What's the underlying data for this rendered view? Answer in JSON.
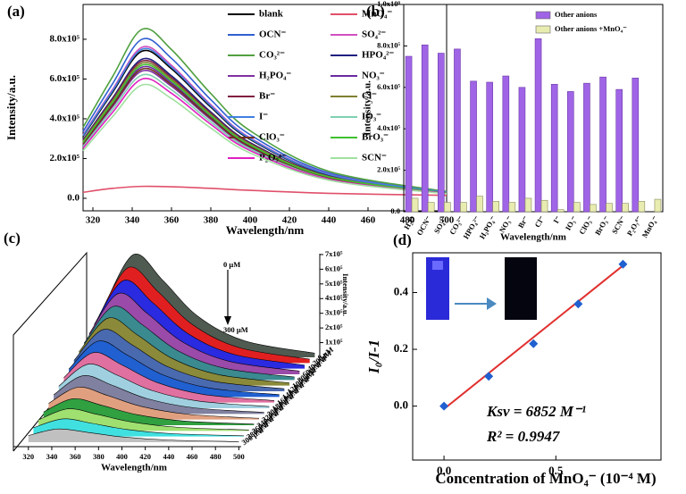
{
  "chart_data": [
    {
      "type": "line",
      "panel_label": "(a)",
      "x_label": "Wavelength/nm",
      "y_label": "Intensity/a.u.",
      "x": [
        315,
        330,
        345,
        360,
        380,
        400,
        440,
        500
      ],
      "xlim": [
        315,
        500
      ],
      "xticks": [
        320,
        340,
        360,
        380,
        400,
        420,
        440,
        460,
        480,
        500
      ],
      "ylim": [
        -63000,
        975000
      ],
      "yticks": [
        {
          "value": 0,
          "label": "0.0"
        },
        {
          "value": 200000,
          "label": "2.0x10⁵"
        },
        {
          "value": 400000,
          "label": "4.0x10⁵"
        },
        {
          "value": 600000,
          "label": "6.0x10⁵"
        },
        {
          "value": 800000,
          "label": "8.0x10⁵"
        }
      ],
      "series": [
        {
          "name": "blank",
          "color": "#000000",
          "values": [
            310800,
            532800,
            740000,
            651200,
            458800,
            296000,
            118400,
            29600
          ]
        },
        {
          "name": "MnO₄⁻",
          "color": "#e0506a",
          "values": [
            30000,
            50000,
            60000,
            58000,
            50000,
            40000,
            25000,
            15000
          ]
        },
        {
          "name": "OCN⁻",
          "color": "#3060d0",
          "values": [
            336000,
            576000,
            800000,
            704000,
            496000,
            320000,
            128000,
            32000
          ]
        },
        {
          "name": "SO₄²⁻",
          "color": "#d050c0",
          "values": [
            319200,
            547200,
            760000,
            668800,
            471200,
            304000,
            121600,
            30400
          ]
        },
        {
          "name": "CO₃²⁻",
          "color": "#50a040",
          "values": [
            357000,
            612000,
            850000,
            748000,
            527000,
            340000,
            136000,
            34000
          ]
        },
        {
          "name": "HPO₄²⁻",
          "color": "#202080",
          "values": [
            294000,
            504000,
            700000,
            616000,
            434000,
            280000,
            112000,
            28000
          ]
        },
        {
          "name": "H₂PO₄⁻",
          "color": "#8030a0",
          "values": [
            268800,
            460800,
            640000,
            563200,
            396800,
            256000,
            102400,
            25600
          ]
        },
        {
          "name": "NO₃⁻",
          "color": "#6a2aa0",
          "values": [
            277200,
            475200,
            660000,
            580800,
            409200,
            264000,
            105600,
            26400
          ]
        },
        {
          "name": "Br⁻",
          "color": "#802040",
          "values": [
            289800,
            496800,
            690000,
            607200,
            427800,
            276000,
            110400,
            27600
          ]
        },
        {
          "name": "Cl⁻",
          "color": "#808030",
          "values": [
            285600,
            489600,
            680000,
            598400,
            421600,
            272000,
            108800,
            27200
          ]
        },
        {
          "name": "I⁻",
          "color": "#4080e0",
          "values": [
            315000,
            540000,
            750000,
            660000,
            465000,
            300000,
            120000,
            30000
          ]
        },
        {
          "name": "IO₃⁻",
          "color": "#80d0b0",
          "values": [
            260400,
            446400,
            620000,
            545600,
            384400,
            248000,
            99200,
            24800
          ]
        },
        {
          "name": "ClO₃⁻",
          "color": "#703020",
          "values": [
            273000,
            468000,
            650000,
            572000,
            403000,
            260000,
            104000,
            26000
          ]
        },
        {
          "name": "BrO₃⁻",
          "color": "#40c030",
          "values": [
            281400,
            482400,
            670000,
            589600,
            415400,
            268000,
            107200,
            26800
          ]
        },
        {
          "name": "P₂O₇⁴⁻",
          "color": "#e020c0",
          "values": [
            252000,
            432000,
            600000,
            528000,
            372000,
            240000,
            96000,
            24000
          ]
        },
        {
          "name": "SCN⁻",
          "color": "#a0e0a0",
          "values": [
            239400,
            410400,
            570000,
            501600,
            353400,
            228000,
            91200,
            22800
          ]
        }
      ]
    },
    {
      "type": "bar",
      "panel_label": "(b)",
      "x_label": "Wavelength/nm",
      "y_label": "Intensity/a.u.",
      "categories": [
        "H₂O",
        "OCN⁻",
        "SO₄²⁻",
        "CO₃²⁻",
        "HPO₄²⁻",
        "H₂PO₄⁻",
        "NO₃⁻",
        "Br⁻",
        "Cl⁻",
        "I⁻",
        "IO₃⁻",
        "ClO₃⁻",
        "BrO₃⁻",
        "SCN⁻",
        "P₂O₇⁴⁻",
        "MnO₄⁻"
      ],
      "ylim": [
        0,
        1000000
      ],
      "yticks": [
        {
          "value": 0,
          "label": "0.0"
        },
        {
          "value": 200000,
          "label": "2.0x10⁵"
        },
        {
          "value": 400000,
          "label": "4.0x10⁵"
        },
        {
          "value": 600000,
          "label": "6.0x10⁵"
        },
        {
          "value": 800000,
          "label": "8.0x10⁵"
        },
        {
          "value": 1000000,
          "label": "1.0x10⁶"
        }
      ],
      "series": [
        {
          "name": "Other anions",
          "color": "#a064e6",
          "values": [
            750000,
            805000,
            765000,
            785000,
            630000,
            625000,
            655000,
            600000,
            835000,
            615000,
            580000,
            620000,
            650000,
            590000,
            645000,
            null
          ]
        },
        {
          "name": "Other anions +MnO₄⁻",
          "color": "#e8ecb0",
          "values": [
            65000,
            45000,
            45000,
            45000,
            75000,
            50000,
            45000,
            65000,
            55000,
            10000,
            45000,
            35000,
            40000,
            40000,
            50000,
            60000
          ]
        }
      ]
    },
    {
      "type": "waterfall",
      "panel_label": "(c)",
      "x_label": "Wavelength/nm",
      "z_label": "Intensity/a.u.",
      "annotations": [
        "0 μM",
        "300 μM"
      ],
      "x": [
        320,
        345,
        370,
        400,
        440,
        500
      ],
      "xlim": [
        311,
        502
      ],
      "xticks": [
        320,
        340,
        360,
        380,
        400,
        420,
        440,
        460,
        480,
        500
      ],
      "zlim": [
        0,
        730000
      ],
      "zticks": [
        {
          "value": 100000,
          "label": "1x10⁵"
        },
        {
          "value": 200000,
          "label": "2x10⁵"
        },
        {
          "value": 300000,
          "label": "3x10⁵"
        },
        {
          "value": 400000,
          "label": "4x10⁵"
        },
        {
          "value": 500000,
          "label": "5x10⁵"
        },
        {
          "value": 600000,
          "label": "6x10⁵"
        },
        {
          "value": 700000,
          "label": "7x10⁵"
        }
      ],
      "series": [
        {
          "name": "0 μM",
          "color": "#4f5a50",
          "values": [
            350000,
            700000,
            525000,
            280000,
            112000,
            28000
          ]
        },
        {
          "name": "20 μM",
          "color": "#e02020",
          "values": [
            325000,
            650000,
            487500,
            260000,
            104000,
            26000
          ]
        },
        {
          "name": "40 μM",
          "color": "#2a2ae0",
          "values": [
            300000,
            600000,
            450000,
            240000,
            96000,
            24000
          ]
        },
        {
          "name": "60 μM",
          "color": "#9a4aa8",
          "values": [
            275000,
            550000,
            412500,
            220000,
            88000,
            22000
          ]
        },
        {
          "name": "80 μM",
          "color": "#3a8a90",
          "values": [
            250000,
            500000,
            375000,
            200000,
            80000,
            20000
          ]
        },
        {
          "name": "100 μM",
          "color": "#8a8a3a",
          "values": [
            230000,
            460000,
            345000,
            184000,
            73600,
            18400
          ]
        },
        {
          "name": "120 μM",
          "color": "#4a6ab0",
          "values": [
            210000,
            420000,
            315000,
            168000,
            67200,
            16800
          ]
        },
        {
          "name": "140 μM",
          "color": "#2060d0",
          "values": [
            190000,
            380000,
            285000,
            152000,
            60800,
            15200
          ]
        },
        {
          "name": "160 μM",
          "color": "#e070a0",
          "values": [
            170000,
            340000,
            255000,
            136000,
            54400,
            13600
          ]
        },
        {
          "name": "180 μM",
          "color": "#a0d0e0",
          "values": [
            150000,
            300000,
            225000,
            120000,
            48000,
            12000
          ]
        },
        {
          "name": "200 μM",
          "color": "#8080a0",
          "values": [
            130000,
            260000,
            195000,
            104000,
            41600,
            10400
          ]
        },
        {
          "name": "220 μM",
          "color": "#e0a080",
          "values": [
            110000,
            220000,
            165000,
            88000,
            35200,
            8800
          ]
        },
        {
          "name": "240 μM",
          "color": "#30a040",
          "values": [
            90000,
            180000,
            135000,
            72000,
            28800,
            7200
          ]
        },
        {
          "name": "260 μM",
          "color": "#a0e070",
          "values": [
            75000,
            150000,
            112500,
            60000,
            24000,
            6000
          ]
        },
        {
          "name": "280 μM",
          "color": "#40e0e0",
          "values": [
            60000,
            120000,
            90000,
            48000,
            19200,
            4800
          ]
        },
        {
          "name": "300 μM",
          "color": "#c0c0c0",
          "values": [
            45000,
            90000,
            67500,
            36000,
            14400,
            3600
          ]
        }
      ]
    },
    {
      "type": "scatter",
      "panel_label": "(d)",
      "x_label": "Concentration of MnO₄⁻ (10⁻⁴ M)",
      "y_label": "I₀/I-1",
      "annotations": [
        "Ksv = 6852  M⁻¹",
        "R² = 0.9947"
      ],
      "x": [
        0,
        0.2,
        0.4,
        0.6,
        0.8
      ],
      "series": [
        {
          "color": "#2060d0",
          "values": [
            0,
            0.105,
            0.22,
            0.36,
            0.5
          ]
        }
      ],
      "fit": {
        "color": "#e03030",
        "x": [
          0,
          0.8
        ],
        "values": [
          -0.01,
          0.495
        ]
      },
      "xlim": [
        -0.14,
        0.97
      ],
      "xticks": [
        {
          "value": 0,
          "label": "0.0"
        },
        {
          "value": 0.5,
          "label": "0.5"
        }
      ],
      "ylim": [
        -0.19,
        0.54
      ],
      "yticks": [
        {
          "value": 0,
          "label": "0.0"
        },
        {
          "value": 0.2,
          "label": "0.2"
        },
        {
          "value": 0.4,
          "label": "0.4"
        }
      ]
    }
  ]
}
